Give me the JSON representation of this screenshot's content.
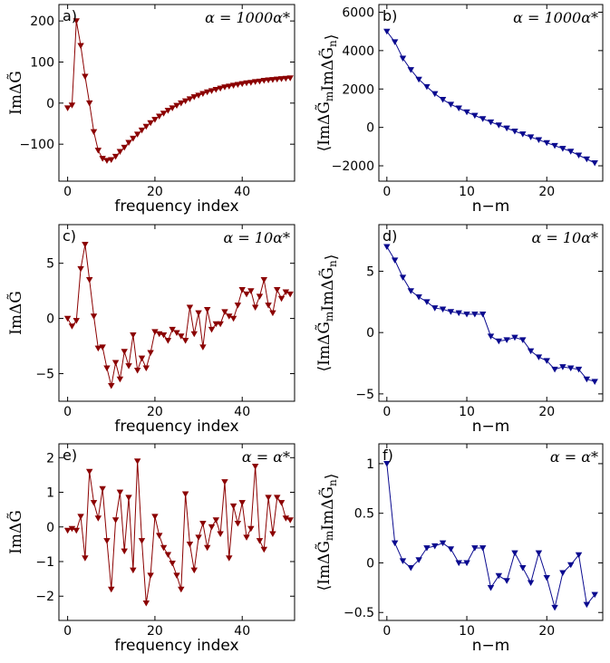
{
  "colors": {
    "red": "#8b0000",
    "blue": "#0a0a8f"
  },
  "chart_data": [
    {
      "id": "a",
      "type": "line",
      "panel_label": "a)",
      "annotation": "α = 1000α*",
      "xlabel": "frequency index",
      "ylabel": "ImΔG̃",
      "xlim": [
        -2,
        52
      ],
      "ylim": [
        -190,
        240
      ],
      "xticks": [
        0,
        20,
        40
      ],
      "yticks": [
        200,
        100,
        0,
        -100
      ],
      "ytick_labels": [
        "200",
        "100",
        "0",
        "−100"
      ],
      "color": "#8b0000",
      "series": [
        {
          "x": [
            0,
            1,
            2,
            3,
            4,
            5,
            6,
            7,
            8,
            9,
            10,
            11,
            12,
            13,
            14,
            15,
            16,
            17,
            18,
            19,
            20,
            21,
            22,
            23,
            24,
            25,
            26,
            27,
            28,
            29,
            30,
            31,
            32,
            33,
            34,
            35,
            36,
            37,
            38,
            39,
            40,
            41,
            42,
            43,
            44,
            45,
            46,
            47,
            48,
            49,
            50,
            51
          ],
          "values": [
            -12,
            -5,
            200,
            140,
            65,
            0,
            -70,
            -115,
            -135,
            -140,
            -138,
            -130,
            -118,
            -108,
            -96,
            -86,
            -76,
            -66,
            -57,
            -48,
            -40,
            -32,
            -25,
            -18,
            -12,
            -6,
            0,
            5,
            10,
            15,
            19,
            23,
            27,
            30,
            33,
            36,
            39,
            41,
            43,
            45,
            47,
            49,
            50,
            52,
            53,
            55,
            56,
            57,
            58,
            59,
            60,
            61
          ]
        }
      ]
    },
    {
      "id": "b",
      "type": "line",
      "panel_label": "b)",
      "annotation": "α = 1000α*",
      "xlabel": "n−m",
      "ylabel": "⟨ImΔG̃mImΔG̃n⟩",
      "xlim": [
        -1,
        27
      ],
      "ylim": [
        -2800,
        6400
      ],
      "xticks": [
        0,
        10,
        20
      ],
      "yticks": [
        6000,
        4000,
        2000,
        0,
        -2000
      ],
      "ytick_labels": [
        "6000",
        "4000",
        "2000",
        "0",
        "−2000"
      ],
      "color": "#0a0a8f",
      "series": [
        {
          "x": [
            0,
            1,
            2,
            3,
            4,
            5,
            6,
            7,
            8,
            9,
            10,
            11,
            12,
            13,
            14,
            15,
            16,
            17,
            18,
            19,
            20,
            21,
            22,
            23,
            24,
            25,
            26
          ],
          "values": [
            5000,
            4450,
            3600,
            3000,
            2500,
            2120,
            1750,
            1450,
            1200,
            1000,
            800,
            620,
            450,
            280,
            120,
            -40,
            -200,
            -350,
            -500,
            -650,
            -800,
            -950,
            -1100,
            -1250,
            -1450,
            -1650,
            -1850
          ]
        }
      ]
    },
    {
      "id": "c",
      "type": "line",
      "panel_label": "c)",
      "annotation": "α = 10α*",
      "xlabel": "frequency index",
      "ylabel": "ImΔG̃",
      "xlim": [
        -2,
        52
      ],
      "ylim": [
        -7.5,
        8.5
      ],
      "xticks": [
        0,
        20,
        40
      ],
      "yticks": [
        5,
        0,
        -5
      ],
      "ytick_labels": [
        "5",
        "0",
        "−5"
      ],
      "color": "#8b0000",
      "series": [
        {
          "x": [
            0,
            1,
            2,
            3,
            4,
            5,
            6,
            7,
            8,
            9,
            10,
            11,
            12,
            13,
            14,
            15,
            16,
            17,
            18,
            19,
            20,
            21,
            22,
            23,
            24,
            25,
            26,
            27,
            28,
            29,
            30,
            31,
            32,
            33,
            34,
            35,
            36,
            37,
            38,
            39,
            40,
            41,
            42,
            43,
            44,
            45,
            46,
            47,
            48,
            49,
            50,
            51
          ],
          "values": [
            0,
            -0.7,
            -0.2,
            4.5,
            6.7,
            3.5,
            0.2,
            -2.7,
            -2.6,
            -4.5,
            -6.1,
            -4.0,
            -5.5,
            -3.0,
            -4.3,
            -1.5,
            -4.7,
            -3.6,
            -4.5,
            -3.1,
            -1.2,
            -1.4,
            -1.5,
            -2.0,
            -1.0,
            -1.3,
            -1.6,
            -2.0,
            1.0,
            -1.4,
            0.5,
            -2.6,
            0.8,
            -1.0,
            -0.5,
            -0.5,
            0.6,
            0.2,
            0.0,
            1.2,
            2.6,
            2.2,
            2.5,
            1.0,
            2.0,
            3.5,
            1.2,
            0.5,
            2.6,
            1.8,
            2.4,
            2.2
          ]
        }
      ]
    },
    {
      "id": "d",
      "type": "line",
      "panel_label": "d)",
      "annotation": "α = 10α*",
      "xlabel": "n−m",
      "ylabel": "⟨ImΔG̃mImΔG̃n⟩",
      "xlim": [
        -1,
        27
      ],
      "ylim": [
        -5.6,
        8.8
      ],
      "xticks": [
        0,
        10,
        20
      ],
      "yticks": [
        5,
        0,
        -5
      ],
      "ytick_labels": [
        "5",
        "0",
        "−5"
      ],
      "color": "#0a0a8f",
      "series": [
        {
          "x": [
            0,
            1,
            2,
            3,
            4,
            5,
            6,
            7,
            8,
            9,
            10,
            11,
            12,
            13,
            14,
            15,
            16,
            17,
            18,
            19,
            20,
            21,
            22,
            23,
            24,
            25,
            26
          ],
          "values": [
            7,
            5.9,
            4.5,
            3.4,
            2.9,
            2.5,
            2.0,
            1.9,
            1.7,
            1.6,
            1.5,
            1.5,
            1.5,
            -0.3,
            -0.7,
            -0.6,
            -0.4,
            -0.6,
            -1.5,
            -2.0,
            -2.3,
            -3.0,
            -2.8,
            -2.9,
            -3.0,
            -3.8,
            -4.0
          ]
        }
      ]
    },
    {
      "id": "e",
      "type": "line",
      "panel_label": "e)",
      "annotation": "α = α*",
      "xlabel": "frequency index",
      "ylabel": "ImΔG̃",
      "xlim": [
        -2,
        52
      ],
      "ylim": [
        -2.7,
        2.4
      ],
      "xticks": [
        0,
        20,
        40
      ],
      "yticks": [
        2,
        1,
        0,
        -1,
        -2
      ],
      "ytick_labels": [
        "2",
        "1",
        "0",
        "−1",
        "−2"
      ],
      "color": "#8b0000",
      "series": [
        {
          "x": [
            0,
            1,
            2,
            3,
            4,
            5,
            6,
            7,
            8,
            9,
            10,
            11,
            12,
            13,
            14,
            15,
            16,
            17,
            18,
            19,
            20,
            21,
            22,
            23,
            24,
            25,
            26,
            27,
            28,
            29,
            30,
            31,
            32,
            33,
            34,
            35,
            36,
            37,
            38,
            39,
            40,
            41,
            42,
            43,
            44,
            45,
            46,
            47,
            48,
            49,
            50,
            51
          ],
          "values": [
            -0.1,
            -0.05,
            -0.1,
            0.3,
            -0.9,
            1.6,
            0.7,
            0.25,
            1.1,
            -0.4,
            -1.8,
            0.2,
            1.0,
            -0.7,
            0.85,
            -1.25,
            1.9,
            -0.4,
            -2.2,
            -1.4,
            0.3,
            -0.25,
            -0.6,
            -0.8,
            -1.05,
            -1.4,
            -1.8,
            0.95,
            -0.5,
            -1.25,
            -0.3,
            0.1,
            -0.6,
            0.0,
            0.2,
            -0.2,
            1.3,
            -0.9,
            0.6,
            0.1,
            0.7,
            -0.3,
            -0.05,
            1.75,
            -0.4,
            -0.65,
            0.85,
            -0.2,
            0.85,
            0.7,
            0.25,
            0.2
          ]
        }
      ]
    },
    {
      "id": "f",
      "type": "line",
      "panel_label": "f)",
      "annotation": "α = α*",
      "xlabel": "n−m",
      "ylabel": "⟨ImΔG̃mImΔG̃n⟩",
      "xlim": [
        -1,
        27
      ],
      "ylim": [
        -0.58,
        1.2
      ],
      "xticks": [
        0,
        10,
        20
      ],
      "yticks": [
        1,
        0.5,
        0,
        -0.5
      ],
      "ytick_labels": [
        "1",
        "0.5",
        "0",
        "−0.5"
      ],
      "color": "#0a0a8f",
      "series": [
        {
          "x": [
            0,
            1,
            2,
            3,
            4,
            5,
            6,
            7,
            8,
            9,
            10,
            11,
            12,
            13,
            14,
            15,
            16,
            17,
            18,
            19,
            20,
            21,
            22,
            23,
            24,
            25,
            26
          ],
          "values": [
            1.0,
            0.2,
            0.02,
            -0.05,
            0.03,
            0.15,
            0.17,
            0.2,
            0.14,
            0.0,
            0.0,
            0.15,
            0.15,
            -0.25,
            -0.13,
            -0.18,
            0.1,
            -0.05,
            -0.2,
            0.1,
            -0.15,
            -0.45,
            -0.1,
            -0.02,
            0.08,
            -0.42,
            -0.32
          ]
        }
      ]
    }
  ]
}
